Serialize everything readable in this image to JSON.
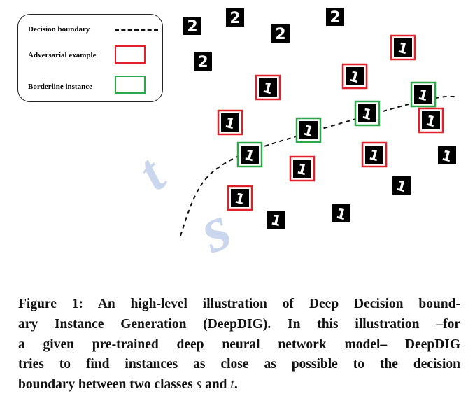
{
  "legend": {
    "boundary_label": "Decision boundary",
    "adversarial_label": "Adversarial  example",
    "borderline_label": "Borderline instance"
  },
  "class_labels": {
    "s": "s",
    "t": "t"
  },
  "digits": [
    {
      "glyph": "2",
      "kind": "plain"
    },
    {
      "glyph": "2",
      "kind": "plain"
    },
    {
      "glyph": "2",
      "kind": "plain"
    },
    {
      "glyph": "2",
      "kind": "plain"
    },
    {
      "glyph": "2",
      "kind": "plain"
    },
    {
      "glyph": "1",
      "kind": "adversarial"
    },
    {
      "glyph": "1",
      "kind": "adversarial"
    },
    {
      "glyph": "1",
      "kind": "adversarial"
    },
    {
      "glyph": "1",
      "kind": "adversarial"
    },
    {
      "glyph": "1",
      "kind": "adversarial"
    },
    {
      "glyph": "1",
      "kind": "adversarial"
    },
    {
      "glyph": "1",
      "kind": "adversarial"
    },
    {
      "glyph": "1",
      "kind": "adversarial"
    },
    {
      "glyph": "1",
      "kind": "borderline"
    },
    {
      "glyph": "1",
      "kind": "borderline"
    },
    {
      "glyph": "1",
      "kind": "borderline"
    },
    {
      "glyph": "1",
      "kind": "borderline"
    },
    {
      "glyph": "1",
      "kind": "plain"
    },
    {
      "glyph": "1",
      "kind": "plain"
    },
    {
      "glyph": "1",
      "kind": "plain"
    },
    {
      "glyph": "1",
      "kind": "plain"
    }
  ],
  "colors": {
    "adversarial": "#e0202a",
    "borderline": "#2aa84a",
    "class_label": "#c9d6ee",
    "tile": "#000000"
  },
  "caption": {
    "lines": [
      "Figure 1: An high-level illustration of Deep Decision bound-",
      "ary Instance Generation (DeepDIG). In this illustration –for",
      "a given pre-trained deep neural network model– DeepDIG",
      "tries to find instances as close as possible to the decision"
    ],
    "last_line_prefix": "boundary between two classes ",
    "last_line_s": "s",
    "last_line_mid": " and ",
    "last_line_t": "t",
    "last_line_suffix": "."
  }
}
